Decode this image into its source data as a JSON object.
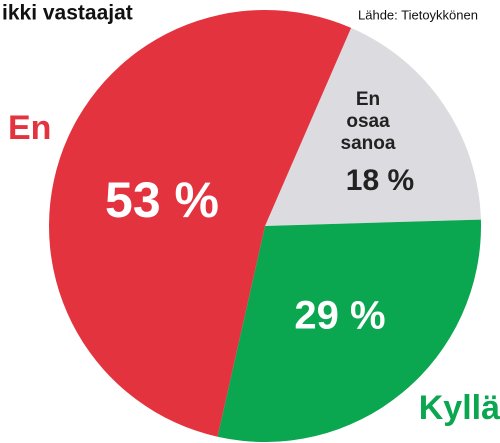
{
  "chart_data": {
    "type": "pie",
    "title": "ikki vastaajat",
    "source": "Lähde: Tietoykkönen",
    "categories": [
      "En osaa sanoa",
      "Kyllä",
      "En"
    ],
    "values": [
      18,
      29,
      53
    ],
    "value_labels": [
      "18 %",
      "29 %",
      "53 %"
    ],
    "colors": [
      "#dcdce0",
      "#0aa650",
      "#e2333e"
    ]
  }
}
